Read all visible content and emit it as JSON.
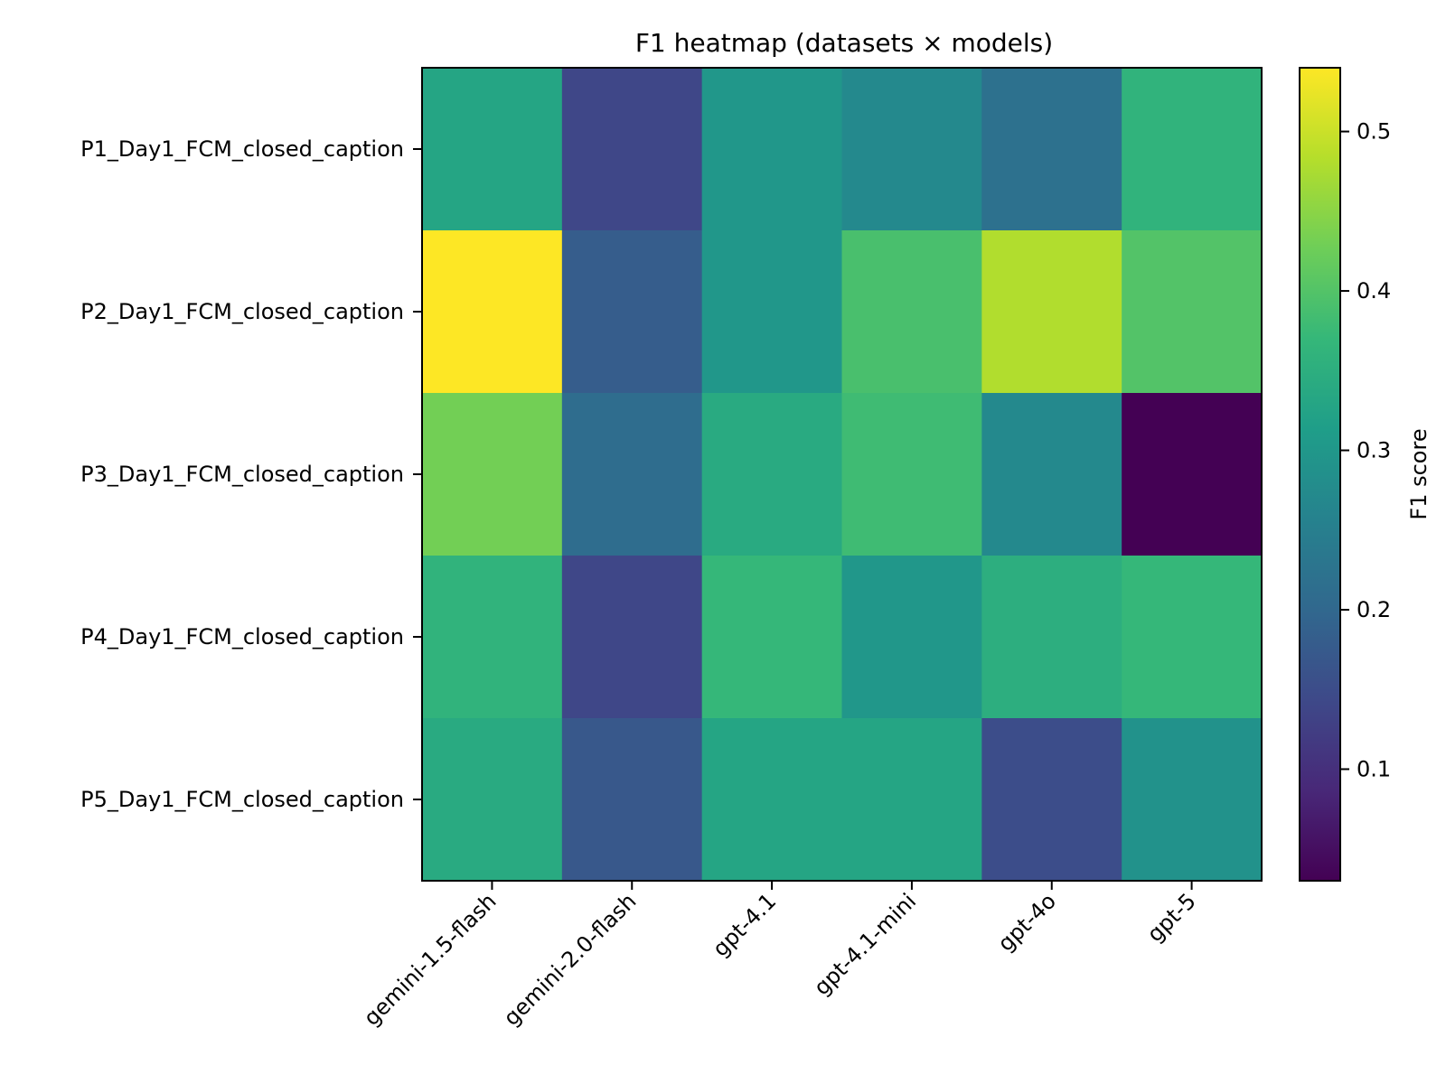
{
  "chart_data": {
    "type": "heatmap",
    "title": "F1 heatmap (datasets × models)",
    "xlabel": "",
    "ylabel": "",
    "rows": [
      "P1_Day1_FCM_closed_caption",
      "P2_Day1_FCM_closed_caption",
      "P3_Day1_FCM_closed_caption",
      "P4_Day1_FCM_closed_caption",
      "P5_Day1_FCM_closed_caption"
    ],
    "columns": [
      "gemini-1.5-flash",
      "gemini-2.0-flash",
      "gpt-4.1",
      "gpt-4.1-mini",
      "gpt-4o",
      "gpt-5"
    ],
    "values": [
      [
        0.33,
        0.14,
        0.3,
        0.27,
        0.22,
        0.36
      ],
      [
        0.54,
        0.18,
        0.3,
        0.39,
        0.48,
        0.4
      ],
      [
        0.43,
        0.21,
        0.34,
        0.38,
        0.27,
        0.03
      ],
      [
        0.36,
        0.14,
        0.37,
        0.3,
        0.35,
        0.37
      ],
      [
        0.34,
        0.17,
        0.33,
        0.33,
        0.15,
        0.29
      ]
    ],
    "colormap": "viridis",
    "colorbar": {
      "label": "F1 score",
      "range": [
        0.03,
        0.54
      ],
      "ticks": [
        0.1,
        0.2,
        0.3,
        0.4,
        0.5
      ],
      "tick_labels": [
        "0.1",
        "0.2",
        "0.3",
        "0.4",
        "0.5"
      ]
    }
  }
}
